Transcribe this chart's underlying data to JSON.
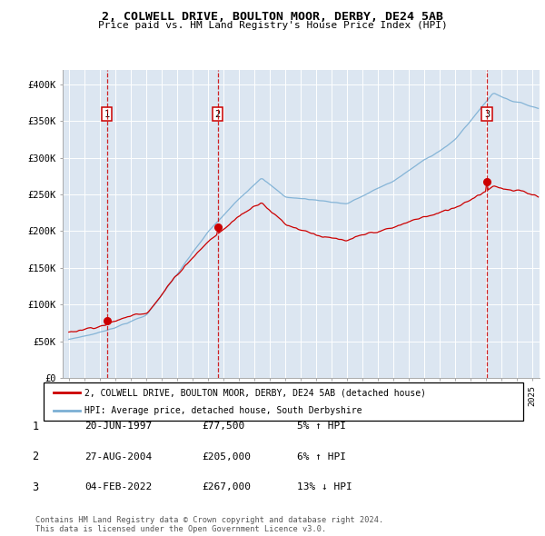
{
  "title1": "2, COLWELL DRIVE, BOULTON MOOR, DERBY, DE24 5AB",
  "title2": "Price paid vs. HM Land Registry's House Price Index (HPI)",
  "legend1": "2, COLWELL DRIVE, BOULTON MOOR, DERBY, DE24 5AB (detached house)",
  "legend2": "HPI: Average price, detached house, South Derbyshire",
  "sale_dates": [
    1997.47,
    2004.65,
    2022.09
  ],
  "sale_prices": [
    77500,
    205000,
    267000
  ],
  "sale_labels": [
    "1",
    "2",
    "3"
  ],
  "table_rows": [
    [
      "1",
      "20-JUN-1997",
      "£77,500",
      "5% ↑ HPI"
    ],
    [
      "2",
      "27-AUG-2004",
      "£205,000",
      "6% ↑ HPI"
    ],
    [
      "3",
      "04-FEB-2022",
      "£267,000",
      "13% ↓ HPI"
    ]
  ],
  "footer": "Contains HM Land Registry data © Crown copyright and database right 2024.\nThis data is licensed under the Open Government Licence v3.0.",
  "red_color": "#cc0000",
  "blue_color": "#7bafd4",
  "bg_color": "#dce6f1",
  "ylim": [
    0,
    420000
  ],
  "xlim": [
    1994.6,
    2025.5
  ],
  "yticks": [
    0,
    50000,
    100000,
    150000,
    200000,
    250000,
    300000,
    350000,
    400000
  ],
  "ylabels": [
    "£0",
    "£50K",
    "£100K",
    "£150K",
    "£200K",
    "£250K",
    "£300K",
    "£350K",
    "£400K"
  ]
}
